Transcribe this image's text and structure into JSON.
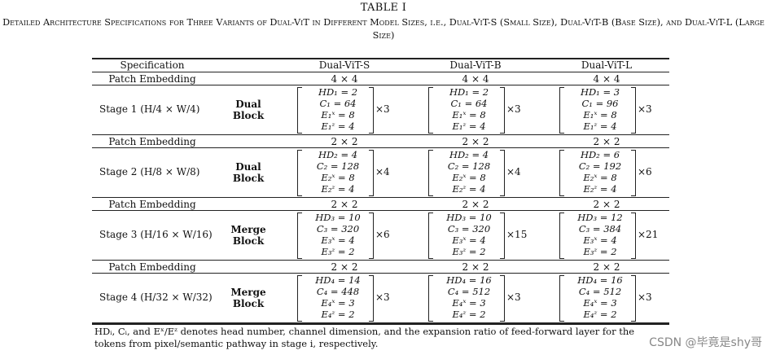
{
  "caption": {
    "label": "TABLE I",
    "text": "Detailed Architecture Specifications for Three Variants of Dual-ViT in Different Model Sizes, i.e., Dual-ViT-S (Small Size), Dual-ViT-B (Base Size), and Dual-ViT-L (Large Size)"
  },
  "header": [
    "Specification",
    "Dual-ViT-S",
    "Dual-ViT-B",
    "Dual-ViT-L"
  ],
  "rows": [
    {
      "kind": "embed",
      "label": "Patch Embedding",
      "values": [
        "4 × 4",
        "4 × 4",
        "4 × 4"
      ]
    },
    {
      "kind": "stage",
      "label": "Stage 1 (H/4 × W/4)",
      "block": [
        "Dual",
        "Block"
      ],
      "cells": [
        {
          "lines": [
            "HD₁ = 2",
            "C₁ = 64",
            "E₁ˣ = 8",
            "E₁ᶻ = 4"
          ],
          "mult": "×3"
        },
        {
          "lines": [
            "HD₁ = 2",
            "C₁ = 64",
            "E₁ˣ = 8",
            "E₁ᶻ = 4"
          ],
          "mult": "×3"
        },
        {
          "lines": [
            "HD₁ = 3",
            "C₁ = 96",
            "E₁ˣ = 8",
            "E₁ᶻ = 4"
          ],
          "mult": "×3"
        }
      ]
    },
    {
      "kind": "embed",
      "label": "Patch Embedding",
      "values": [
        "2 × 2",
        "2 × 2",
        "2 × 2"
      ]
    },
    {
      "kind": "stage",
      "label": "Stage 2 (H/8 × W/8)",
      "block": [
        "Dual",
        "Block"
      ],
      "cells": [
        {
          "lines": [
            "HD₂ = 4",
            "C₂ = 128",
            "E₂ˣ = 8",
            "E₂ᶻ = 4"
          ],
          "mult": "×4"
        },
        {
          "lines": [
            "HD₂ = 4",
            "C₂ = 128",
            "E₂ˣ = 8",
            "E₂ᶻ = 4"
          ],
          "mult": "×4"
        },
        {
          "lines": [
            "HD₂ = 6",
            "C₂ = 192",
            "E₂ˣ = 8",
            "E₂ᶻ = 4"
          ],
          "mult": "×6"
        }
      ]
    },
    {
      "kind": "embed",
      "label": "Patch Embedding",
      "values": [
        "2 × 2",
        "2 × 2",
        "2 × 2"
      ]
    },
    {
      "kind": "stage",
      "label": "Stage 3 (H/16 × W/16)",
      "block": [
        "Merge",
        "Block"
      ],
      "cells": [
        {
          "lines": [
            "HD₃ = 10",
            "C₃ = 320",
            "E₃ˣ = 4",
            "E₃ᶻ = 2"
          ],
          "mult": "×6"
        },
        {
          "lines": [
            "HD₃ = 10",
            "C₃ = 320",
            "E₃ˣ = 4",
            "E₃ᶻ = 2"
          ],
          "mult": "×15"
        },
        {
          "lines": [
            "HD₃ = 12",
            "C₃ = 384",
            "E₃ˣ = 4",
            "E₃ᶻ = 2"
          ],
          "mult": "×21"
        }
      ]
    },
    {
      "kind": "embed",
      "label": "Patch Embedding",
      "values": [
        "2 × 2",
        "2 × 2",
        "2 × 2"
      ]
    },
    {
      "kind": "stage",
      "label": "Stage 4 (H/32 × W/32)",
      "block": [
        "Merge",
        "Block"
      ],
      "cells": [
        {
          "lines": [
            "HD₄ = 14",
            "C₄ = 448",
            "E₄ˣ = 3",
            "E₄ᶻ = 2"
          ],
          "mult": "×3"
        },
        {
          "lines": [
            "HD₄ = 16",
            "C₄ = 512",
            "E₄ˣ = 3",
            "E₄ᶻ = 2"
          ],
          "mult": "×3"
        },
        {
          "lines": [
            "HD₄ = 16",
            "C₄ = 512",
            "E₄ˣ = 3",
            "E₄ᶻ = 2"
          ],
          "mult": "×3"
        }
      ]
    }
  ],
  "footnote": "HDᵢ, Cᵢ, and Eˣ/Eᶻ denotes head number, channel dimension, and the expansion ratio of feed-forward layer for the tokens from pixel/semantic pathway in stage i, respectively.",
  "watermark": "CSDN @毕竟是shy哥"
}
